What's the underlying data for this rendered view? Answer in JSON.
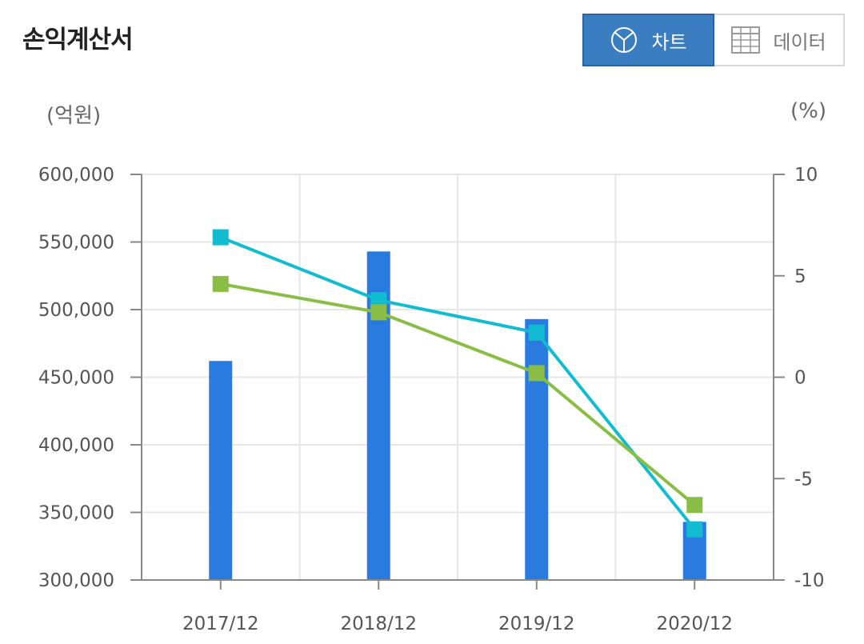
{
  "header": {
    "title": "손익계산서"
  },
  "toggle": {
    "chart_label": "차트",
    "data_label": "데이터",
    "chart_icon": "pie-chart-icon",
    "data_icon": "table-grid-icon",
    "active": "chart"
  },
  "colors": {
    "bar": "#2a7be0",
    "line_1": "#12bcd0",
    "line_2": "#8abd45",
    "grid": "#e6e6e6",
    "axis": "#888888",
    "toggle_active": "#3a7ec1"
  },
  "chart_data": {
    "type": "bar",
    "categories": [
      "2017/12",
      "2018/12",
      "2019/12",
      "2020/12"
    ],
    "left_unit": "(억원)",
    "right_unit": "(%)",
    "left_ylim": [
      300000,
      600000
    ],
    "right_ylim": [
      -10,
      10
    ],
    "left_ticks": [
      "600,000",
      "550,000",
      "500,000",
      "450,000",
      "400,000",
      "350,000",
      "300,000"
    ],
    "right_ticks": [
      "10",
      "5",
      "0",
      "-5",
      "-10"
    ],
    "grid": true,
    "series": [
      {
        "type": "bar",
        "axis": "left",
        "values": [
          462000,
          543000,
          493000,
          343000
        ]
      },
      {
        "type": "line",
        "axis": "right",
        "marker": "square",
        "values": [
          6.9,
          3.8,
          2.2,
          -7.5
        ]
      },
      {
        "type": "line",
        "axis": "right",
        "marker": "square",
        "values": [
          4.6,
          3.2,
          0.2,
          -6.3
        ]
      }
    ]
  }
}
